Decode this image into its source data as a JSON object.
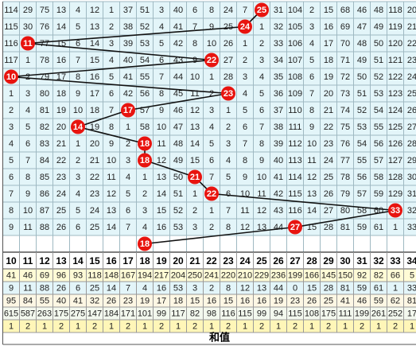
{
  "trend": {
    "hits": [
      25,
      24,
      11,
      22,
      10,
      23,
      17,
      14,
      18,
      18,
      21,
      22,
      33,
      27,
      18
    ],
    "rows": [
      [
        114,
        29,
        75,
        13,
        4,
        12,
        1,
        37,
        51,
        3,
        40,
        6,
        8,
        24,
        7,
        null,
        31,
        104,
        2,
        15,
        68,
        46,
        48,
        118,
        20
      ],
      [
        115,
        30,
        76,
        14,
        5,
        13,
        2,
        38,
        52,
        4,
        41,
        7,
        9,
        25,
        null,
        1,
        32,
        105,
        3,
        16,
        69,
        47,
        49,
        119,
        21
      ],
      [
        116,
        null,
        77,
        15,
        6,
        14,
        3,
        39,
        53,
        5,
        42,
        8,
        10,
        26,
        1,
        2,
        33,
        106,
        4,
        17,
        70,
        48,
        50,
        120,
        22
      ],
      [
        117,
        1,
        78,
        16,
        7,
        15,
        4,
        40,
        54,
        6,
        43,
        9,
        null,
        27,
        2,
        3,
        34,
        107,
        5,
        18,
        71,
        49,
        51,
        121,
        23
      ],
      [
        null,
        2,
        79,
        17,
        8,
        16,
        5,
        41,
        55,
        7,
        44,
        10,
        1,
        28,
        3,
        4,
        35,
        108,
        6,
        19,
        72,
        50,
        52,
        122,
        24
      ],
      [
        1,
        3,
        80,
        18,
        9,
        17,
        6,
        42,
        56,
        8,
        45,
        11,
        2,
        null,
        4,
        5,
        36,
        109,
        7,
        20,
        73,
        51,
        53,
        123,
        25
      ],
      [
        2,
        4,
        81,
        19,
        10,
        18,
        7,
        null,
        57,
        9,
        46,
        12,
        3,
        1,
        5,
        6,
        37,
        110,
        8,
        21,
        74,
        52,
        54,
        124,
        26
      ],
      [
        3,
        5,
        82,
        20,
        null,
        19,
        8,
        1,
        58,
        10,
        47,
        13,
        4,
        2,
        6,
        7,
        38,
        111,
        9,
        22,
        75,
        53,
        55,
        125,
        27
      ],
      [
        4,
        6,
        83,
        21,
        1,
        20,
        9,
        2,
        null,
        11,
        48,
        14,
        5,
        3,
        7,
        8,
        39,
        112,
        10,
        23,
        76,
        54,
        56,
        126,
        28
      ],
      [
        5,
        7,
        84,
        22,
        2,
        21,
        10,
        3,
        null,
        12,
        49,
        15,
        6,
        4,
        8,
        9,
        40,
        113,
        11,
        24,
        77,
        55,
        57,
        127,
        29
      ],
      [
        6,
        8,
        85,
        23,
        3,
        22,
        11,
        4,
        1,
        13,
        50,
        null,
        7,
        5,
        9,
        10,
        41,
        114,
        12,
        25,
        78,
        56,
        58,
        128,
        30
      ],
      [
        7,
        9,
        86,
        24,
        4,
        23,
        12,
        5,
        2,
        14,
        51,
        1,
        null,
        6,
        10,
        11,
        42,
        115,
        13,
        26,
        79,
        57,
        59,
        129,
        31
      ],
      [
        8,
        10,
        87,
        25,
        5,
        24,
        13,
        6,
        3,
        15,
        52,
        2,
        1,
        7,
        11,
        12,
        43,
        116,
        14,
        27,
        80,
        58,
        60,
        null,
        32
      ],
      [
        9,
        11,
        88,
        26,
        6,
        25,
        14,
        7,
        4,
        16,
        53,
        3,
        2,
        8,
        12,
        13,
        44,
        null,
        15,
        28,
        81,
        59,
        61,
        1,
        33
      ]
    ]
  },
  "stats": {
    "header": [
      10,
      11,
      12,
      13,
      14,
      15,
      16,
      17,
      18,
      19,
      20,
      21,
      22,
      23,
      24,
      25,
      26,
      27,
      28,
      29,
      30,
      31,
      32,
      33,
      34
    ],
    "rows": [
      [
        41,
        46,
        69,
        96,
        93,
        118,
        148,
        167,
        194,
        217,
        204,
        250,
        241,
        220,
        210,
        229,
        236,
        199,
        166,
        145,
        150,
        92,
        82,
        66,
        5
      ],
      [
        9,
        11,
        88,
        26,
        6,
        25,
        14,
        7,
        4,
        16,
        53,
        3,
        2,
        8,
        12,
        13,
        44,
        0,
        15,
        28,
        81,
        59,
        61,
        1,
        33
      ],
      [
        95,
        84,
        55,
        40,
        41,
        32,
        26,
        23,
        19,
        17,
        18,
        15,
        16,
        15,
        16,
        16,
        19,
        23,
        26,
        25,
        41,
        46,
        59,
        62,
        81
      ],
      [
        615,
        587,
        263,
        175,
        275,
        147,
        184,
        171,
        101,
        99,
        117,
        82,
        98,
        116,
        115,
        99,
        94,
        115,
        108,
        175,
        111,
        199,
        261,
        252,
        17
      ],
      [
        1,
        2,
        1,
        2,
        1,
        2,
        1,
        2,
        1,
        2,
        1,
        2,
        1,
        2,
        1,
        2,
        1,
        2,
        1,
        2,
        1,
        2,
        1,
        2,
        1
      ]
    ],
    "footer": "和值"
  }
}
